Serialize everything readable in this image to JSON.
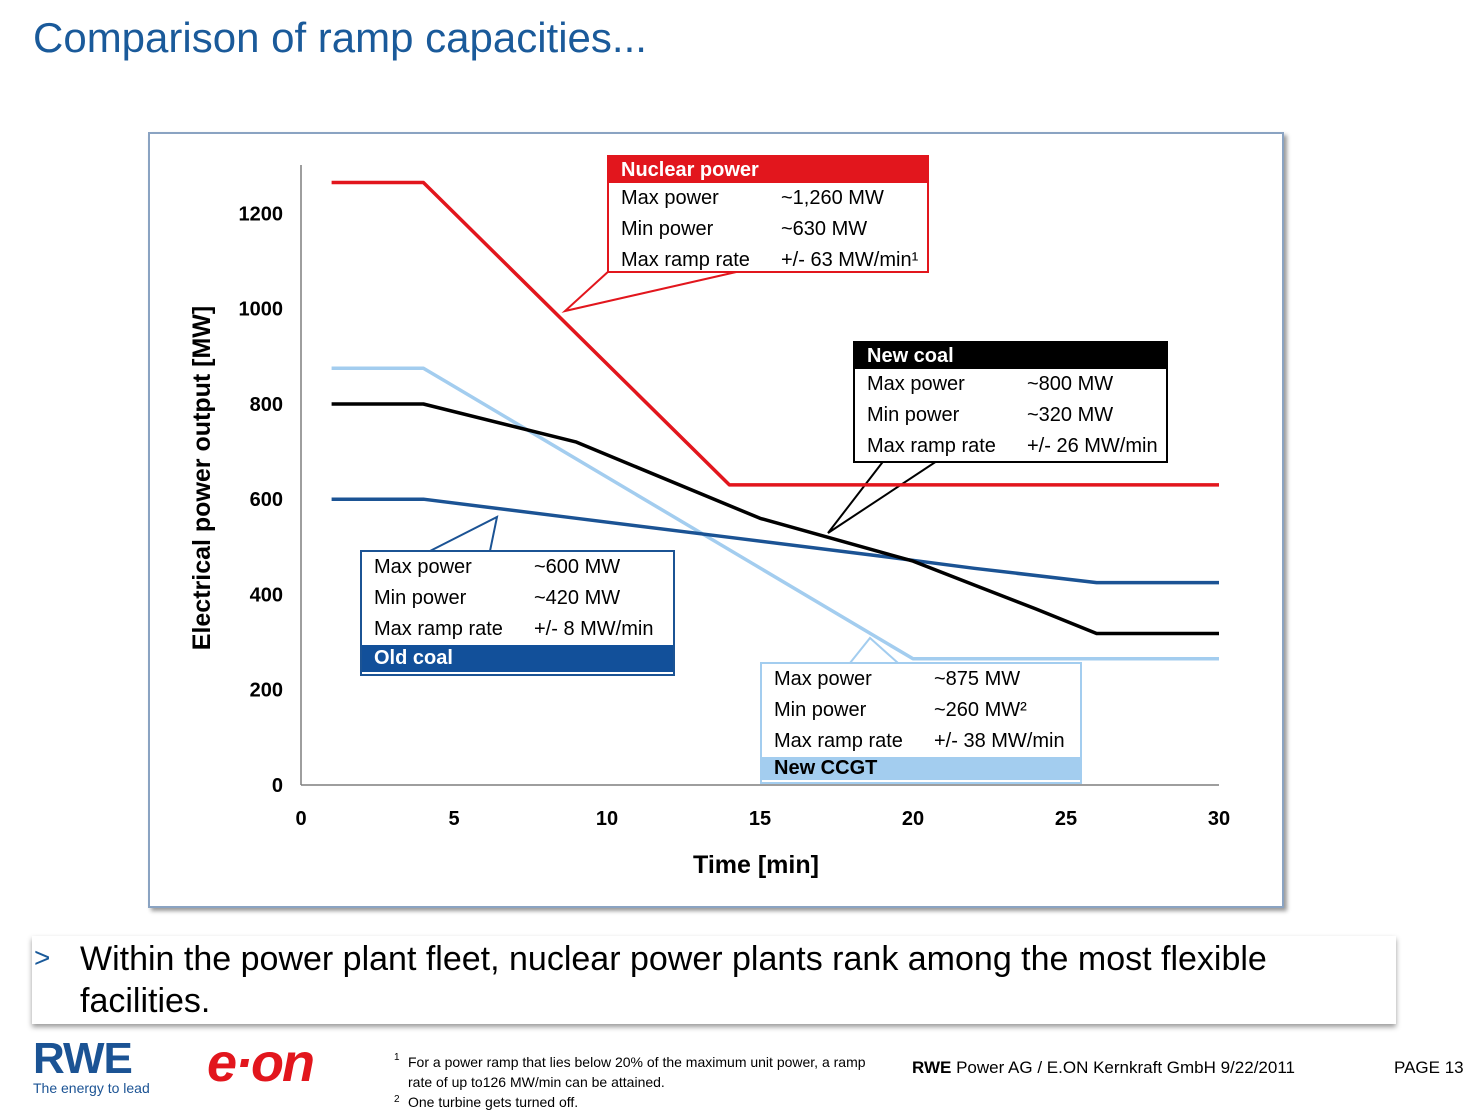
{
  "slide": {
    "title": "Comparison of ramp capacities..."
  },
  "chart_data": {
    "type": "line",
    "xlabel": "Time [min]",
    "ylabel": "Electrical power output [MW]",
    "xlim": [
      0,
      30
    ],
    "ylim": [
      0,
      1300
    ],
    "xticks": [
      "0",
      "5",
      "10",
      "15",
      "20",
      "25",
      "30"
    ],
    "yticks": [
      "0",
      "200",
      "400",
      "600",
      "800",
      "1000",
      "1200"
    ],
    "grid": false,
    "series": [
      {
        "name": "Nuclear power",
        "color": "#e2161d",
        "points": [
          [
            1,
            1265
          ],
          [
            4,
            1265
          ],
          [
            14,
            630
          ],
          [
            30,
            630
          ]
        ]
      },
      {
        "name": "New coal",
        "color": "#000000",
        "points": [
          [
            1,
            800
          ],
          [
            4,
            800
          ],
          [
            9,
            720
          ],
          [
            15,
            560
          ],
          [
            20,
            470
          ],
          [
            22,
            420
          ],
          [
            24,
            370
          ],
          [
            26,
            318
          ],
          [
            30,
            318
          ]
        ]
      },
      {
        "name": "Old coal",
        "color": "#1b5394",
        "points": [
          [
            1,
            600
          ],
          [
            4,
            600
          ],
          [
            9,
            560
          ],
          [
            14,
            520
          ],
          [
            19,
            480
          ],
          [
            22,
            455
          ],
          [
            26,
            425
          ],
          [
            30,
            425
          ]
        ]
      },
      {
        "name": "New CCGT",
        "color": "#a3cdef",
        "points": [
          [
            1,
            875
          ],
          [
            4,
            875
          ],
          [
            20,
            265
          ],
          [
            30,
            265
          ]
        ]
      }
    ]
  },
  "boxes": {
    "nuclear": {
      "title": "Nuclear power",
      "color": "#e2161d",
      "headerColor": "#e2161d",
      "rows": [
        {
          "k": "Max power",
          "v": "~1,260 MW"
        },
        {
          "k": "Min power",
          "v": "~630 MW"
        },
        {
          "k": "Max ramp rate",
          "v": "+/- 63 MW/min¹"
        }
      ]
    },
    "newcoal": {
      "title": "New coal",
      "color": "#000000",
      "headerColor": "#000000",
      "rows": [
        {
          "k": "Max power",
          "v": "~800 MW"
        },
        {
          "k": "Min power",
          "v": "~320 MW"
        },
        {
          "k": "Max ramp rate",
          "v": "+/- 26 MW/min"
        }
      ]
    },
    "oldcoal": {
      "title": "Old coal",
      "color": "#1b5394",
      "headerColor": "#12509a",
      "rows": [
        {
          "k": "Max power",
          "v": "~600 MW"
        },
        {
          "k": "Min power",
          "v": "~420 MW"
        },
        {
          "k": "Max ramp rate",
          "v": "+/- 8 MW/min"
        }
      ]
    },
    "ccgt": {
      "title": "New CCGT",
      "color": "#a3cdef",
      "headerColor": "#a3cdef",
      "rows": [
        {
          "k": "Max power",
          "v": "~875 MW"
        },
        {
          "k": "Min power",
          "v": "~260 MW²"
        },
        {
          "k": "Max ramp rate",
          "v": "+/- 38 MW/min"
        }
      ]
    }
  },
  "bullet": {
    "marker": ">",
    "text": "Within the power plant fleet, nuclear power plants rank among the most flexible facilities."
  },
  "footer": {
    "rwe_logo": "RWE",
    "rwe_tagline": "The energy to lead",
    "eon_logo": "e·on",
    "footnote1_mark": "1",
    "footnote1": "For a power ramp that lies below 20% of the maximum unit power, a ramp rate of up to126 MW/min can be attained.",
    "footnote2_mark": "2",
    "footnote2": "One turbine gets turned off.",
    "company_bold": "RWE",
    "company_rest": " Power AG / E.ON Kernkraft GmbH 9/22/2011",
    "page": "PAGE 13"
  }
}
